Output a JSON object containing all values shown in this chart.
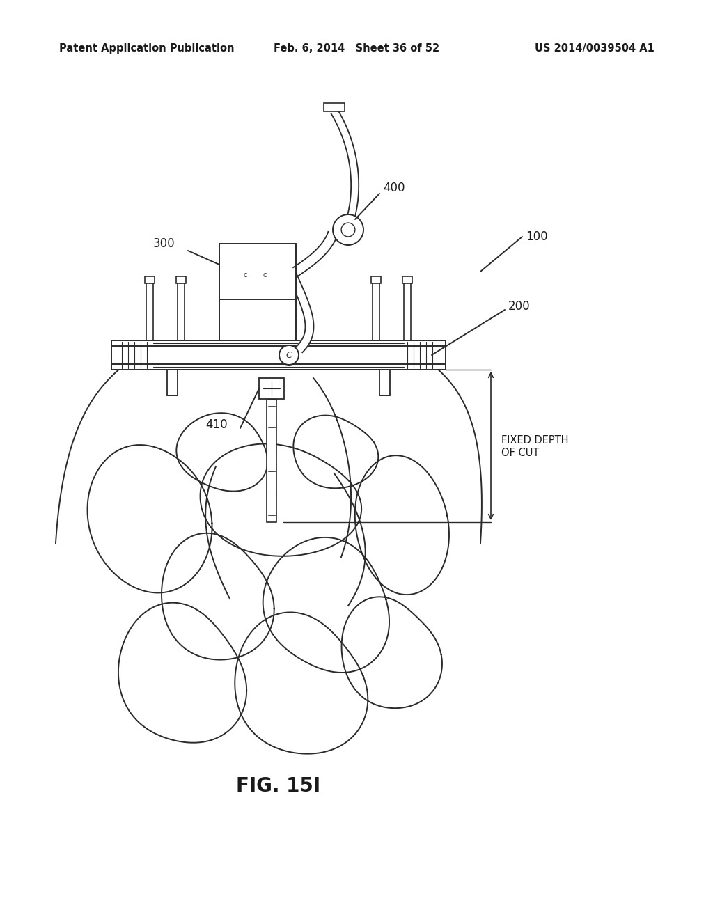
{
  "header_left": "Patent Application Publication",
  "header_center": "Feb. 6, 2014   Sheet 36 of 52",
  "header_right": "US 2014/0039504 A1",
  "figure_label": "FIG. 15I",
  "bg_color": "#ffffff",
  "line_color": "#2a2a2a",
  "text_color": "#1a1a1a",
  "header_fontsize": 10.5,
  "label_fontsize": 12,
  "fig_label_fontsize": 20
}
